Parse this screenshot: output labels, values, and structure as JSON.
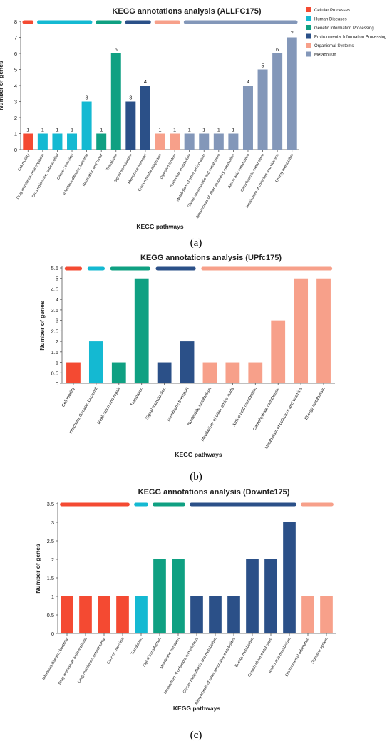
{
  "colors": {
    "cellular": "#f44a32",
    "human": "#14b9d2",
    "genetic": "#0fa082",
    "environmental": "#2b5088",
    "organismal": "#f7a08a",
    "metabolism": "#8397b9"
  },
  "chart_data": [
    {
      "type": "bar",
      "title": "KEGG annotations analysis (ALLFC175)",
      "xlabel": "KEGG pathways",
      "ylabel": "Number of genes",
      "ylim": [
        0,
        8
      ],
      "yticks": [
        "0",
        "1",
        "2",
        "3",
        "4",
        "5",
        "6",
        "7",
        "8"
      ],
      "data_labels": true,
      "legend": {
        "position": "right",
        "entries": [
          {
            "label": "Cellular Processes",
            "color": "#f44a32"
          },
          {
            "label": "Human Diseases",
            "color": "#14b9d2"
          },
          {
            "label": "Genetic Information Processing",
            "color": "#0fa082"
          },
          {
            "label": "Environmental Information Processing",
            "color": "#2b5088"
          },
          {
            "label": "Organismal Systems",
            "color": "#f7a08a"
          },
          {
            "label": "Metabolism",
            "color": "#8397b9"
          }
        ]
      },
      "categories": [
        "Cell motility",
        "Drug resistance: antineoplastic",
        "Drug resistance: antimicrobial",
        "Cancer: overview",
        "Infectious disease: bacterial",
        "Replication and repair",
        "Translation",
        "Signal transduction",
        "Membrane transport",
        "Environmental adaptation",
        "Digestive system",
        "Nucleotide metabolism",
        "Metabolism of other amino acids",
        "Glycan biosynthesis and metabolism",
        "Biosynthesis of other secondary metabolites",
        "Amino acid metabolism",
        "Carbohydrate metabolism",
        "Metabolism of cofactors and vitamins",
        "Energy metabolism"
      ],
      "values": [
        1,
        1,
        1,
        1,
        3,
        1,
        6,
        3,
        4,
        1,
        1,
        1,
        1,
        1,
        1,
        4,
        5,
        6,
        7
      ],
      "colors": [
        "#f44a32",
        "#14b9d2",
        "#14b9d2",
        "#14b9d2",
        "#14b9d2",
        "#0fa082",
        "#0fa082",
        "#2b5088",
        "#2b5088",
        "#f7a08a",
        "#f7a08a",
        "#8397b9",
        "#8397b9",
        "#8397b9",
        "#8397b9",
        "#8397b9",
        "#8397b9",
        "#8397b9",
        "#8397b9"
      ],
      "group_bars": [
        {
          "from": 0,
          "to": 0,
          "color": "#f44a32"
        },
        {
          "from": 1,
          "to": 4,
          "color": "#14b9d2"
        },
        {
          "from": 5,
          "to": 6,
          "color": "#0fa082"
        },
        {
          "from": 7,
          "to": 8,
          "color": "#2b5088"
        },
        {
          "from": 9,
          "to": 10,
          "color": "#f7a08a"
        },
        {
          "from": 11,
          "to": 18,
          "color": "#8397b9"
        }
      ],
      "panel_label": "(a)"
    },
    {
      "type": "bar",
      "title": "KEGG annotations analysis (UPfc175)",
      "xlabel": "KEGG pathways",
      "ylabel": "Number of genes",
      "ylim": [
        0,
        5.5
      ],
      "yticks": [
        "0",
        "0.5",
        "1",
        "1.5",
        "2",
        "2.5",
        "3",
        "3.5",
        "4",
        "4.5",
        "5",
        "5.5"
      ],
      "data_labels": false,
      "categories": [
        "Cell motility",
        "Infectious disease: bacterial",
        "Replication and repair",
        "Translation",
        "Signal transduction",
        "Membrane transport",
        "Nucleotide metabolism",
        "Metabolism of other amino acids",
        "Amino acid metabolism",
        "Carbohydrate metabolism",
        "Metabolism of cofactors and vitamins",
        "Energy metabolism"
      ],
      "values": [
        1,
        2,
        1,
        5,
        1,
        2,
        1,
        1,
        1,
        3,
        5,
        5
      ],
      "colors": [
        "#f44a32",
        "#14b9d2",
        "#0fa082",
        "#0fa082",
        "#2b5088",
        "#2b5088",
        "#f7a08a",
        "#f7a08a",
        "#f7a08a",
        "#f7a08a",
        "#f7a08a",
        "#f7a08a"
      ],
      "group_bars": [
        {
          "from": 0,
          "to": 0,
          "color": "#f44a32"
        },
        {
          "from": 1,
          "to": 1,
          "color": "#14b9d2"
        },
        {
          "from": 2,
          "to": 3,
          "color": "#0fa082"
        },
        {
          "from": 4,
          "to": 5,
          "color": "#2b5088"
        },
        {
          "from": 6,
          "to": 11,
          "color": "#f7a08a"
        }
      ],
      "panel_label": "(b)"
    },
    {
      "type": "bar",
      "title": "KEGG annotations analysis (Downfc175)",
      "xlabel": "KEGG pathways",
      "ylabel": "Number of genes",
      "ylim": [
        0,
        3.5
      ],
      "yticks": [
        "0",
        "0.5",
        "1",
        "1.5",
        "2",
        "2.5",
        "3",
        "3.5"
      ],
      "data_labels": false,
      "categories": [
        "Infectious disease: bacterial",
        "Drug resistance: antineoplastic",
        "Drug resistance: antimicrobial",
        "Cancer: overview",
        "Translation",
        "Signal transduction",
        "Membrane transport",
        "Metabolism of cofactors and vitamins",
        "Glycan biosynthesis and metabolism",
        "Biosynthesis of other secondary metabolites",
        "Energy metabolism",
        "Carbohydrate metabolism",
        "Amino acid metabolism",
        "Environmental adaptation",
        "Digestive system"
      ],
      "values": [
        1,
        1,
        1,
        1,
        1,
        2,
        2,
        1,
        1,
        1,
        2,
        2,
        3,
        1,
        1
      ],
      "colors": [
        "#f44a32",
        "#f44a32",
        "#f44a32",
        "#f44a32",
        "#14b9d2",
        "#0fa082",
        "#0fa082",
        "#2b5088",
        "#2b5088",
        "#2b5088",
        "#2b5088",
        "#2b5088",
        "#2b5088",
        "#f7a08a",
        "#f7a08a"
      ],
      "group_bars": [
        {
          "from": 0,
          "to": 3,
          "color": "#f44a32"
        },
        {
          "from": 4,
          "to": 4,
          "color": "#14b9d2"
        },
        {
          "from": 5,
          "to": 6,
          "color": "#0fa082"
        },
        {
          "from": 7,
          "to": 12,
          "color": "#2b5088"
        },
        {
          "from": 13,
          "to": 14,
          "color": "#f7a08a"
        }
      ],
      "panel_label": "(c)"
    }
  ]
}
